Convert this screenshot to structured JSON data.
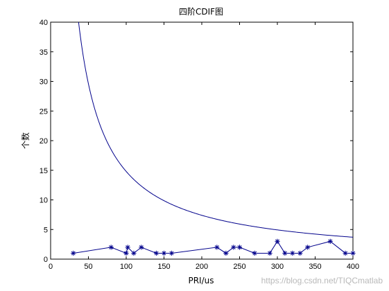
{
  "chart_data": {
    "type": "line",
    "title": "四阶CDIF图",
    "xlabel": "PRI/us",
    "ylabel": "个数",
    "xlim": [
      0,
      400
    ],
    "ylim": [
      0,
      40
    ],
    "xticks": [
      0,
      50,
      100,
      150,
      200,
      250,
      300,
      350,
      400
    ],
    "yticks": [
      0,
      5,
      10,
      15,
      20,
      25,
      30,
      35,
      40
    ],
    "grid": false,
    "series": [
      {
        "style": "line-with-star-markers",
        "color": "#00008b",
        "x": [
          30,
          80,
          100,
          102,
          110,
          120,
          140,
          150,
          160,
          220,
          232,
          242,
          250,
          270,
          290,
          300,
          310,
          320,
          330,
          340,
          370,
          390,
          400
        ],
        "y": [
          1,
          2,
          1,
          2,
          1,
          2,
          1,
          1,
          1,
          2,
          1,
          2,
          2,
          1,
          1,
          3,
          1,
          1,
          1,
          2,
          3,
          1,
          1
        ]
      },
      {
        "style": "threshold-curve",
        "color": "#00008b",
        "formula": "y = k / x",
        "k": 1480,
        "x_start": 37,
        "x_end": 400
      }
    ]
  },
  "watermark": "https://blog.csdn.net/TIQCmatlab"
}
